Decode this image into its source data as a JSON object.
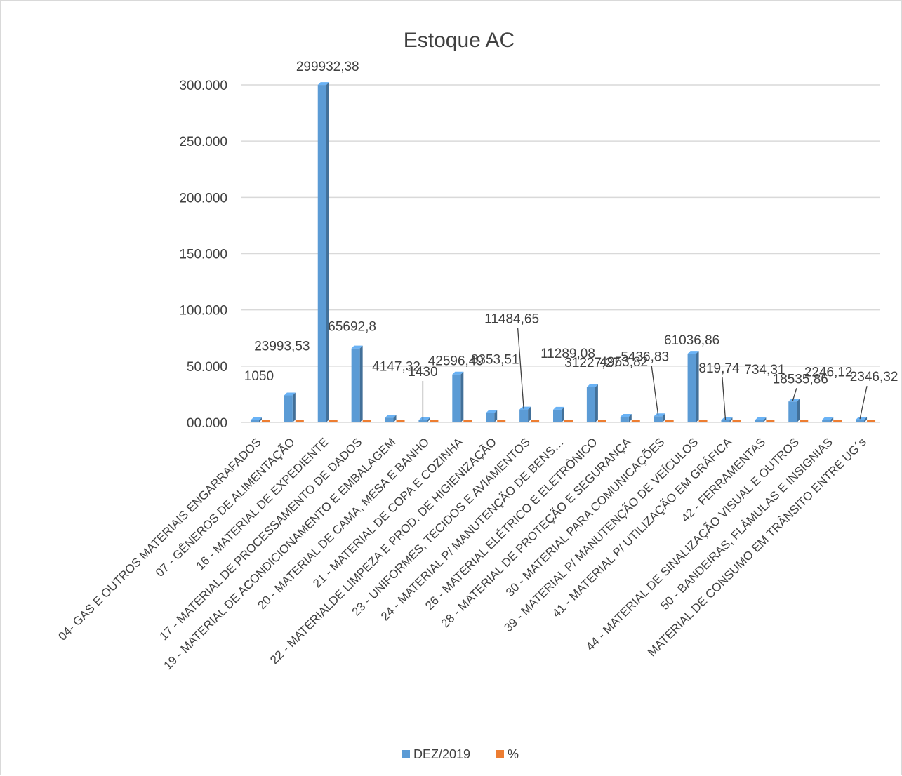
{
  "chart_data": {
    "type": "bar",
    "title": "Estoque AC",
    "xlabel": "",
    "ylabel": "",
    "ylim": [
      0,
      300000
    ],
    "yticks": [
      0,
      50000,
      100000,
      150000,
      200000,
      250000,
      300000
    ],
    "ytick_labels": [
      "00.000",
      "50.000",
      "100.000",
      "150.000",
      "200.000",
      "250.000",
      "300.000"
    ],
    "grid": true,
    "legend_position": "bottom",
    "colors": {
      "series1": "#5b9bd5",
      "series2": "#ed7d31",
      "grid": "#d9d9d9",
      "text": "#404040"
    },
    "categories": [
      "04- GAS E OUTROS MATERIAIS ENGARRAFADOS",
      "07 - GÊNEROS DE ALIMENTAÇÃO",
      "16 - MATERIAL DE EXPEDIENTE",
      "17 - MATERIAL DE PROCESSAMENTO DE DADOS",
      "19 - MATERIAL DE ACONDICIONAMENTO E EMBALAGEM",
      "20 - MATERIAL DE CAMA, MESA E BANHO",
      "21 - MATERIAL DE COPA E COZINHA",
      "22 - MATERIALDE LIMPEZA E PROD. DE HIGIENIZAÇÃO",
      "23 - UNIFORMES, TECIDOS E AVIAMENTOS",
      "24 - MATERIAL P/ MANUTENÇÃO DE BENS…",
      "26 - MATERIAL ELÉTRICO E ELETRÔNICO",
      "28 - MATERIAL DE PROTEÇÃO E SEGURANÇA",
      "30 - MATERIAL PARA COMUNICAÇÕES",
      "39 - MATERIAL P/ MANUTENÇÃO DE VEÍCULOS",
      "41 - MATERIAL P/ UTILIZAÇÃO EM GRÁFICA",
      "42 - FERRAMENTAS",
      "44 - MATERIAL DE SINALIZAÇÃO VISUAL E OUTROS",
      "50 - BANDEIRAS, FLÂMULAS E INSIGNIAS",
      "MATERIAL DE CONSUMO EM TRÂNSITO ENTRE UG´s"
    ],
    "series": [
      {
        "name": "DEZ/2019",
        "values": [
          1050,
          23993.53,
          299932.38,
          65692.8,
          4147.32,
          1430,
          42596.49,
          8353.51,
          11484.65,
          11289.08,
          31227.27,
          4953.82,
          5436.83,
          61036.86,
          819.74,
          734.31,
          18535.86,
          2246.12,
          2346.32
        ],
        "data_labels": [
          "1050",
          "23993,53",
          "299932,38",
          "65692,8",
          "4147,32",
          "1430",
          "42596,49",
          "8353,51",
          "11484,65",
          "11289,08",
          "31227,27",
          "4953,82",
          "5436,83",
          "61036,86",
          "819,74",
          "734,31",
          "18535,86",
          "2246,12",
          "2346,32"
        ]
      },
      {
        "name": "%",
        "values": [
          0,
          0,
          0,
          0,
          0,
          0,
          0,
          0,
          0,
          0,
          0,
          0,
          0,
          0,
          0,
          0,
          0,
          0,
          0
        ]
      }
    ]
  }
}
